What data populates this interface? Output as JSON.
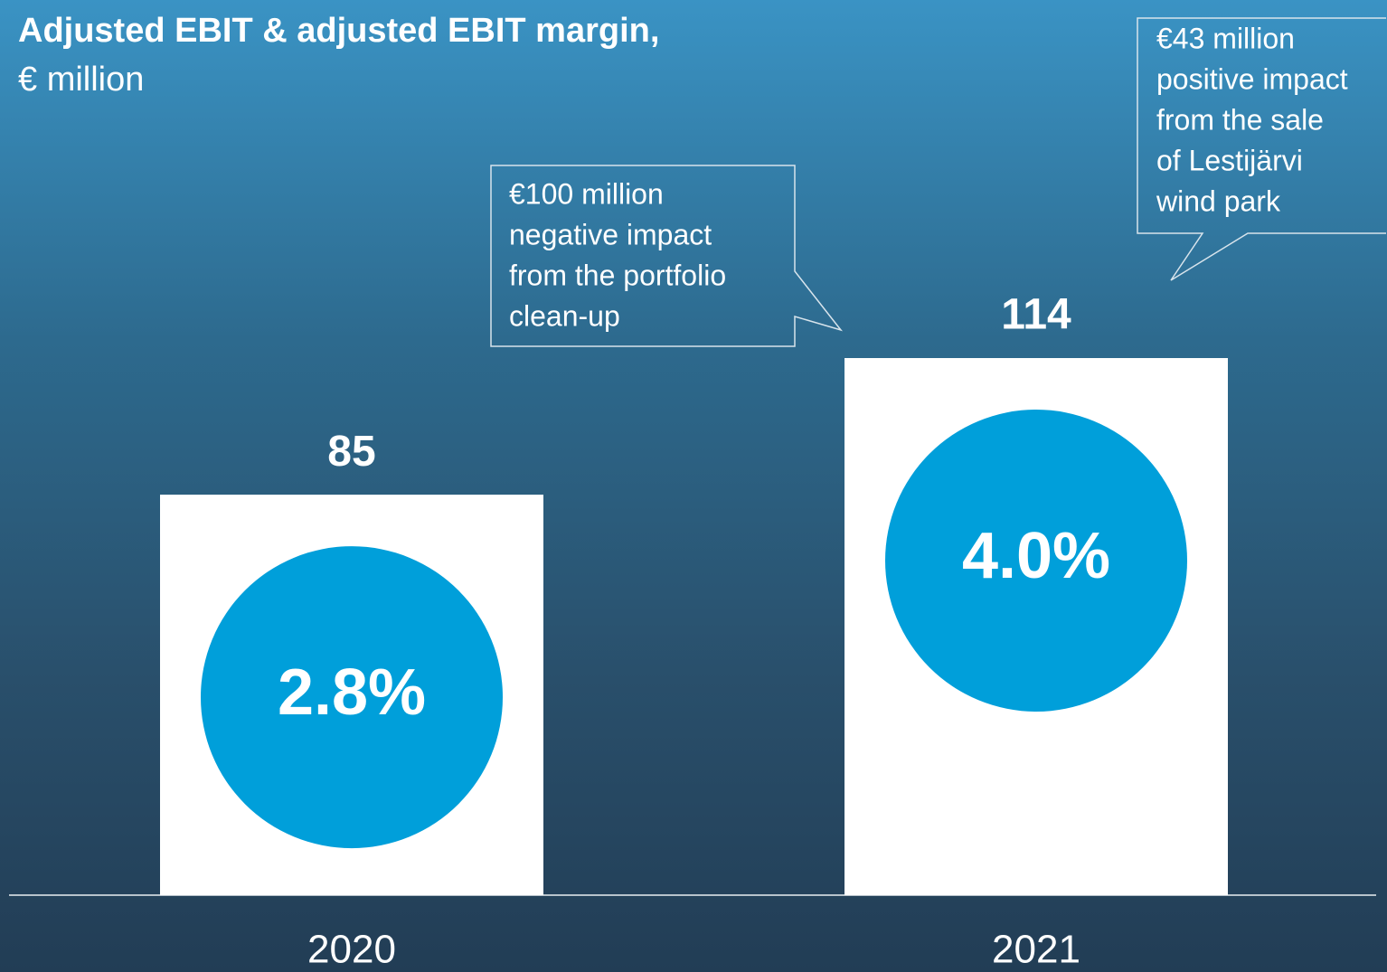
{
  "chart_data": {
    "type": "bar",
    "title": "Adjusted EBIT & adjusted EBIT margin,",
    "subtitle": "€ million",
    "categories": [
      "2020",
      "2021"
    ],
    "values": [
      85,
      114
    ],
    "color": "#ffffff",
    "ylim": [
      0,
      190
    ],
    "margin": {
      "values": [
        2.8,
        4.0
      ],
      "value_labels": [
        "2.8%",
        "4.0%"
      ],
      "color": "#009fda"
    },
    "annotations": [
      {
        "lines": [
          "€100 million",
          "negative impact",
          "from the portfolio",
          "clean-up"
        ]
      },
      {
        "lines": [
          "€43 million",
          "positive impact",
          "from the sale",
          "of Lestijärvi",
          "wind park"
        ]
      }
    ]
  }
}
